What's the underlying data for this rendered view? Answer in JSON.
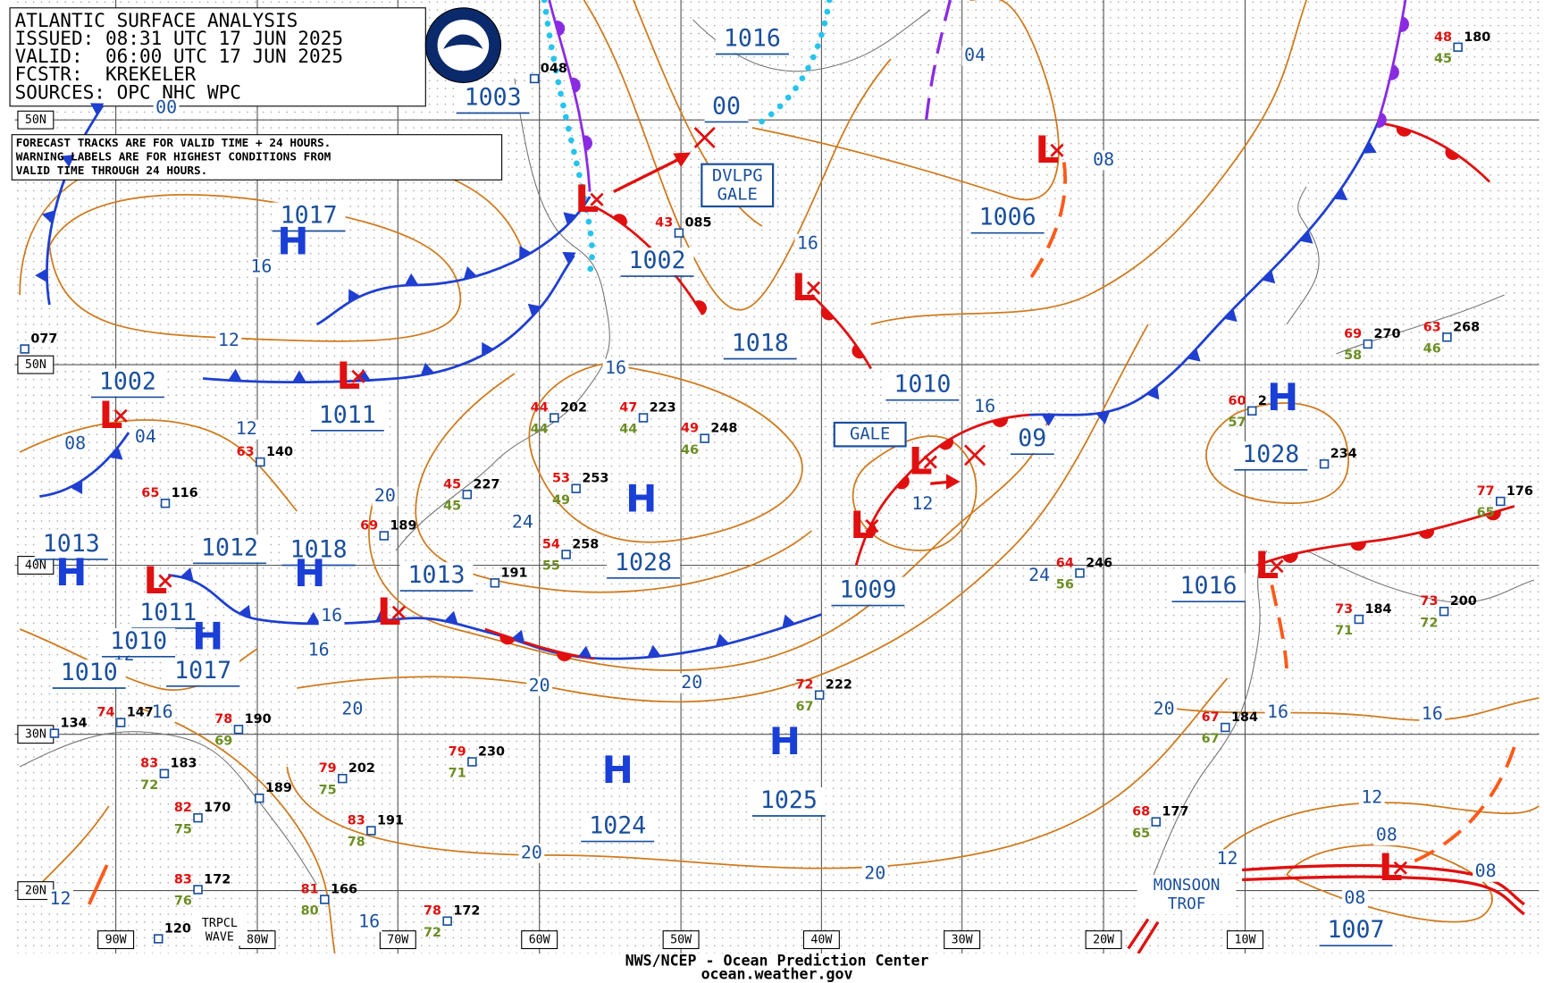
{
  "header": {
    "lines": [
      "ATLANTIC SURFACE ANALYSIS",
      "ISSUED: 08:31 UTC 17 JUN 2025",
      "VALID:  06:00 UTC 17 JUN 2025",
      "FCSTR:  KREKELER",
      "SOURCES: OPC NHC WPC"
    ]
  },
  "note": {
    "lines": [
      "FORECAST TRACKS ARE FOR VALID TIME + 24 HOURS.",
      "WARNING LABELS ARE FOR HIGHEST CONDITIONS FROM",
      "VALID TIME THROUGH 24 HOURS."
    ]
  },
  "warnings": [
    {
      "lines": [
        "DVLPG",
        "GALE"
      ]
    },
    {
      "lines": [
        "GALE"
      ]
    }
  ],
  "features": [
    {
      "lines": [
        "MONSOON",
        "TROF"
      ]
    },
    {
      "lines": [
        "TRPCL",
        "WAVE"
      ]
    }
  ],
  "centers": [
    {
      "symbol": "H",
      "pressure": "1017"
    },
    {
      "pressure": "1003"
    },
    {
      "symbol": "L",
      "pressure": "1002"
    },
    {
      "pressure": "1016"
    },
    {
      "pressure": "00"
    },
    {
      "symbol": "L",
      "pressure": "1006"
    },
    {
      "symbol": "L",
      "pressure": "1018"
    },
    {
      "symbol": "L",
      "pressure": "1010"
    },
    {
      "pressure": "09"
    },
    {
      "symbol": "L",
      "pressure": "1009"
    },
    {
      "symbol": "H",
      "pressure": "1028"
    },
    {
      "symbol": "H",
      "pressure": "1028"
    },
    {
      "symbol": "L",
      "pressure": "1016"
    },
    {
      "symbol": "H",
      "pressure": "1025"
    },
    {
      "symbol": "H",
      "pressure": "1024"
    },
    {
      "symbol": "L",
      "pressure": "1007"
    },
    {
      "symbol": "L",
      "pressure": "1011"
    },
    {
      "symbol": "L",
      "pressure": "1002"
    },
    {
      "symbol": "H",
      "pressure": "1013"
    },
    {
      "symbol": "L",
      "pressure": "1012"
    },
    {
      "symbol": "H",
      "pressure": "1018"
    },
    {
      "symbol": "L",
      "pressure": "1013"
    },
    {
      "pressure": "1011"
    },
    {
      "symbol": "H",
      "pressure": "1017"
    },
    {
      "pressure": "1010"
    },
    {
      "pressure": "1010"
    }
  ],
  "isobar_labels": [
    "04",
    "08",
    "16",
    "16",
    "12",
    "16",
    "16",
    "12",
    "04",
    "08",
    "20",
    "24",
    "12",
    "24",
    "16",
    "16",
    "12",
    "20",
    "20",
    "20",
    "16",
    "20",
    "16",
    "16",
    "12",
    "08",
    "20",
    "20",
    "12",
    "08",
    "08",
    "12",
    "16",
    "00"
  ],
  "lat_labels": [
    "50N",
    "50N",
    "40N",
    "30N",
    "20N"
  ],
  "lon_labels": [
    "90W",
    "80W",
    "70W",
    "60W",
    "50W",
    "40W",
    "30W",
    "20W",
    "10W"
  ],
  "stations": [
    {
      "pressure": "202",
      "temp": "44",
      "dewpoint": "44"
    },
    {
      "pressure": "223",
      "temp": "47",
      "dewpoint": "44"
    },
    {
      "pressure": "248",
      "temp": "49",
      "dewpoint": "46"
    },
    {
      "pressure": "253",
      "temp": "53",
      "dewpoint": "49"
    },
    {
      "pressure": "227",
      "temp": "45",
      "dewpoint": "45"
    },
    {
      "pressure": "258",
      "temp": "54",
      "dewpoint": "55"
    },
    {
      "pressure": "191"
    },
    {
      "pressure": "140",
      "temp": "63"
    },
    {
      "pressure": "116",
      "temp": "65"
    },
    {
      "pressure": "189",
      "temp": "69"
    },
    {
      "pressure": "222",
      "temp": "72",
      "dewpoint": "67"
    },
    {
      "pressure": "230",
      "temp": "79",
      "dewpoint": "71"
    },
    {
      "pressure": "202",
      "temp": "79",
      "dewpoint": "75"
    },
    {
      "pressure": "190",
      "temp": "78",
      "dewpoint": "69"
    },
    {
      "pressure": "183",
      "temp": "83",
      "dewpoint": "72"
    },
    {
      "pressure": "170",
      "temp": "82",
      "dewpoint": "75"
    },
    {
      "pressure": "189"
    },
    {
      "pressure": "172",
      "temp": "83",
      "dewpoint": "76"
    },
    {
      "pressure": "166",
      "temp": "81",
      "dewpoint": "80"
    },
    {
      "pressure": "172",
      "temp": "78",
      "dewpoint": "72"
    },
    {
      "pressure": "246",
      "temp": "64",
      "dewpoint": "56"
    },
    {
      "pressure": "2",
      "temp": "60",
      "dewpoint": "57"
    },
    {
      "pressure": "270",
      "temp": "69",
      "dewpoint": "58"
    },
    {
      "pressure": "268",
      "temp": "63",
      "dewpoint": "46"
    },
    {
      "pressure": "234"
    },
    {
      "pressure": "200",
      "temp": "73",
      "dewpoint": "72"
    },
    {
      "pressure": "184",
      "temp": "73",
      "dewpoint": "71"
    },
    {
      "pressure": "184",
      "temp": "67",
      "dewpoint": "67"
    },
    {
      "pressure": "177",
      "temp": "68",
      "dewpoint": "65"
    },
    {
      "pressure": "180",
      "temp": "48",
      "dewpoint": "45"
    },
    {
      "pressure": "176",
      "temp": "77",
      "dewpoint": "65"
    },
    {
      "pressure": "048"
    },
    {
      "pressure": "085",
      "temp": "43"
    },
    {
      "pressure": "077"
    },
    {
      "pressure": "134"
    },
    {
      "pressure": "147",
      "temp": "74"
    },
    {
      "pressure": "191",
      "temp": "83",
      "dewpoint": "78"
    },
    {
      "pressure": "120"
    }
  ],
  "footer": {
    "lines": [
      "NWS/NCEP - Ocean Prediction Center",
      "ocean.weather.gov"
    ]
  }
}
